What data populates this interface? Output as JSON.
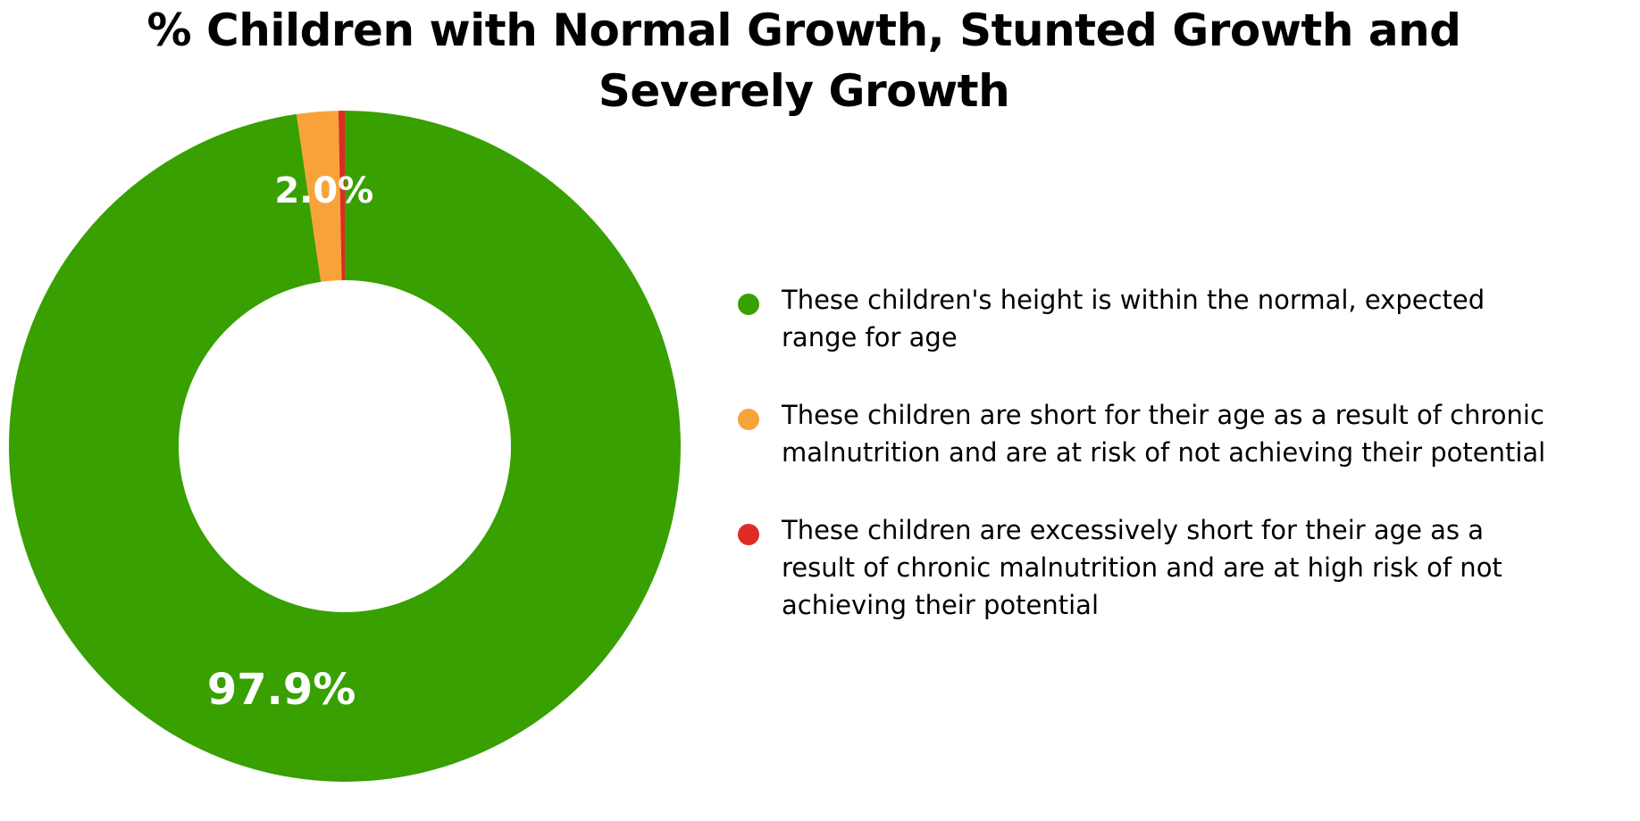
{
  "chart_data": {
    "type": "donut",
    "title_lines": [
      "% Children with Normal Growth, Stunted Growth and",
      "Severely Growth"
    ],
    "slices": [
      {
        "name": "These children's height is within the normal, expected range for age",
        "value": 97.9,
        "label": "97.9%",
        "color": "#38a000"
      },
      {
        "name": "These children are short for their age as a result of chronic malnutrition and are at risk of not achieving their potential",
        "value": 2.0,
        "label": "2.0%",
        "color": "#f8a33a"
      },
      {
        "name": "These children are excessively short for their age as a result of chronic malnutrition and are at high risk of not achieving their potential",
        "value": 0.3,
        "label": "",
        "color": "#de2b25"
      }
    ],
    "legend_position": "right"
  }
}
